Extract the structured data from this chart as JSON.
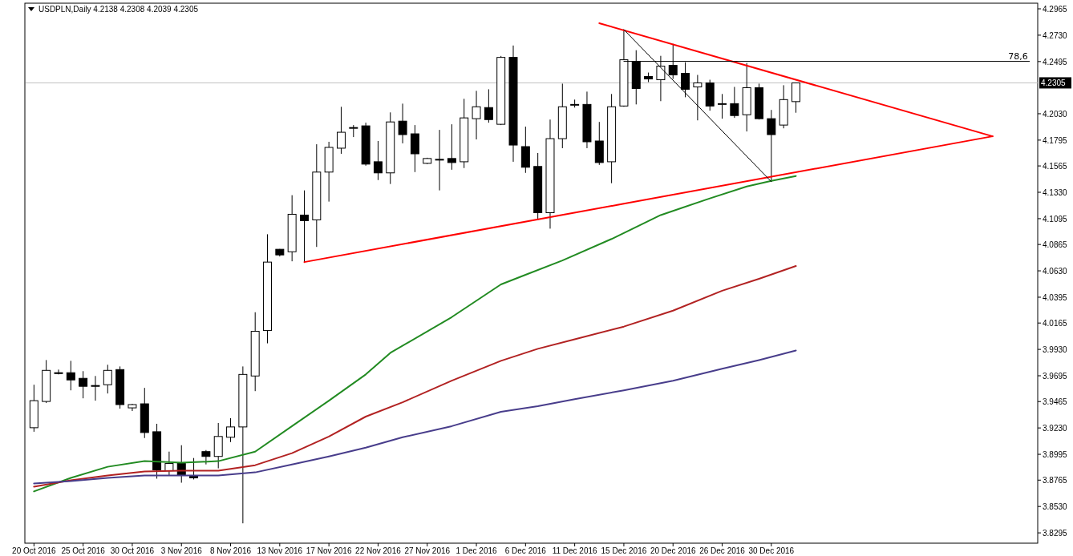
{
  "chart_data": {
    "type": "candlestick",
    "title": "USDPLN,Daily 4.2138 4.2308 4.2039 4.2305",
    "categories": [
      "20 Oct 2016",
      null,
      null,
      null,
      "25 Oct 2016",
      null,
      null,
      null,
      "30 Oct 2016",
      null,
      null,
      null,
      "3 Nov 2016",
      null,
      null,
      null,
      "8 Nov 2016",
      null,
      null,
      null,
      "13 Nov 2016",
      null,
      null,
      null,
      "17 Nov 2016",
      null,
      null,
      null,
      "22 Nov 2016",
      null,
      null,
      null,
      "27 Nov 2016",
      null,
      null,
      null,
      "1 Dec 2016",
      null,
      null,
      null,
      "6 Dec 2016",
      null,
      null,
      null,
      "11 Dec 2016",
      null,
      null,
      null,
      "15 Dec 2016",
      null,
      null,
      null,
      "20 Dec 2016",
      null,
      null,
      null,
      "26 Dec 2016",
      null,
      null,
      null,
      "30 Dec 2016",
      null,
      null,
      null,
      null,
      null,
      null,
      null,
      null,
      null,
      null,
      null,
      null,
      null,
      null,
      null,
      null,
      null,
      null,
      null,
      null,
      null
    ],
    "ohlc": [
      [
        3.9232,
        3.9615,
        3.9196,
        3.9473
      ],
      [
        3.9466,
        3.9835,
        3.9452,
        3.9743
      ],
      [
        3.9722,
        3.975,
        3.9707,
        3.9715
      ],
      [
        3.9722,
        3.9828,
        3.9565,
        3.9658
      ],
      [
        3.9672,
        3.9736,
        3.9494,
        3.9601
      ],
      [
        3.9608,
        3.9693,
        3.9473,
        3.9605
      ],
      [
        3.9615,
        3.9793,
        3.9537,
        3.9743
      ],
      [
        3.975,
        3.9778,
        3.9402,
        3.9438
      ],
      [
        3.9409,
        3.9445,
        3.9381,
        3.9438
      ],
      [
        3.9445,
        3.9587,
        3.914,
        3.9189
      ],
      [
        3.9196,
        3.9267,
        3.8778,
        3.8856
      ],
      [
        3.8849,
        3.9019,
        3.8806,
        3.8913
      ],
      [
        3.8913,
        3.9076,
        3.8742,
        3.8813
      ],
      [
        3.8799,
        3.8962,
        3.8771,
        3.8785
      ],
      [
        3.9019,
        3.9033,
        3.8905,
        3.8976
      ],
      [
        3.8976,
        3.9274,
        3.887,
        3.9154
      ],
      [
        3.9147,
        3.9317,
        3.9104,
        3.9239
      ],
      [
        3.9239,
        3.9778,
        3.838,
        3.9707
      ],
      [
        3.9693,
        4.0261,
        3.9558,
        4.0091
      ],
      [
        4.0098,
        4.0956,
        3.9984,
        4.0708
      ],
      [
        4.0822,
        4.0825,
        4.0758,
        4.0772
      ],
      [
        4.08,
        4.1304,
        4.0715,
        4.1134
      ],
      [
        4.1127,
        4.1347,
        4.0701,
        4.1077
      ],
      [
        4.1084,
        4.1758,
        4.0843,
        4.151
      ],
      [
        4.151,
        4.178,
        4.1247,
        4.173
      ],
      [
        4.1723,
        4.2092,
        4.1673,
        4.1865
      ],
      [
        4.1907,
        4.1929,
        4.1822,
        4.1907
      ],
      [
        4.1922,
        4.195,
        4.1567,
        4.1581
      ],
      [
        4.1602,
        4.1787,
        4.1439,
        4.1503
      ],
      [
        4.1503,
        4.2042,
        4.1404,
        4.1957
      ],
      [
        4.1964,
        4.212,
        4.1766,
        4.1844
      ],
      [
        4.1851,
        4.1929,
        4.151,
        4.1673
      ],
      [
        4.1588,
        4.1638,
        4.1581,
        4.1631
      ],
      [
        4.1624,
        4.1886,
        4.1347,
        4.1624
      ],
      [
        4.1631,
        4.1936,
        4.1531,
        4.1595
      ],
      [
        4.1602,
        4.2163,
        4.1546,
        4.1993
      ],
      [
        4.1986,
        4.2234,
        4.1801,
        4.2092
      ],
      [
        4.2085,
        4.2248,
        4.195,
        4.1978
      ],
      [
        4.1936,
        4.2545,
        4.1929,
        4.2532
      ],
      [
        4.2532,
        4.2638,
        4.1602,
        4.1751
      ],
      [
        4.1737,
        4.1915,
        4.1503,
        4.1553
      ],
      [
        4.156,
        4.168,
        4.1084,
        4.1148
      ],
      [
        4.1148,
        4.1978,
        4.1006,
        4.1808
      ],
      [
        4.1808,
        4.2298,
        4.1723,
        4.2092
      ],
      [
        4.2113,
        4.2156,
        4.2085,
        4.2113
      ],
      [
        4.2113,
        4.2227,
        4.1723,
        4.178
      ],
      [
        4.1787,
        4.1957,
        4.1574,
        4.1595
      ],
      [
        4.1602,
        4.2206,
        4.1411,
        4.2092
      ],
      [
        4.2099,
        4.278,
        4.2092,
        4.2511
      ],
      [
        4.2497,
        4.2596,
        4.2113,
        4.2255
      ],
      [
        4.2362,
        4.2397,
        4.2312,
        4.234
      ],
      [
        4.2333,
        4.2546,
        4.2142,
        4.2454
      ],
      [
        4.2461,
        4.2653,
        4.234,
        4.2376
      ],
      [
        4.239,
        4.2489,
        4.2177,
        4.2248
      ],
      [
        4.2269,
        4.2376,
        4.1971,
        4.2305
      ],
      [
        4.2305,
        4.2333,
        4.2057,
        4.2099
      ],
      [
        4.212,
        4.2206,
        4.1986,
        4.212
      ],
      [
        4.212,
        4.2269,
        4.1993,
        4.2014
      ],
      [
        4.2021,
        4.2482,
        4.1872,
        4.2262
      ],
      [
        4.2262,
        4.2298,
        4.1978,
        4.1986
      ],
      [
        4.1986,
        4.2064,
        4.1425,
        4.1844
      ],
      [
        4.1929,
        4.2284,
        4.19,
        4.2156
      ],
      [
        4.2138,
        4.2308,
        4.2039,
        4.2305
      ],
      null,
      null,
      null,
      null,
      null,
      null,
      null,
      null,
      null,
      null,
      null,
      null,
      null,
      null,
      null,
      null,
      null,
      null,
      null
    ],
    "series": [
      {
        "type": "line",
        "color": "#228b22",
        "values": [
          3.8664,
          null,
          null,
          3.8785,
          null,
          null,
          3.8884,
          null,
          null,
          3.8934,
          null,
          null,
          3.892,
          null,
          null,
          3.8934,
          null,
          null,
          3.9019,
          null,
          null,
          3.9246,
          null,
          null,
          3.9473,
          null,
          null,
          3.9707,
          null,
          3.9899,
          null,
          null,
          null,
          null,
          4.0218,
          null,
          null,
          null,
          4.0509,
          null,
          4.0595,
          null,
          null,
          4.0722,
          null,
          null,
          null,
          4.0914,
          null,
          null,
          null,
          4.1127,
          null,
          null,
          null,
          4.1276,
          null,
          null,
          4.1382,
          null,
          4.1432,
          null,
          4.1475,
          null,
          null,
          null,
          null,
          null,
          null,
          null,
          null,
          null,
          null,
          null,
          null,
          null,
          null,
          null,
          null,
          null,
          null,
          null
        ]
      },
      {
        "type": "line",
        "color": "#b22222",
        "values": [
          3.8707,
          null,
          null,
          3.8764,
          null,
          null,
          3.8806,
          null,
          null,
          3.8842,
          null,
          null,
          3.8849,
          null,
          null,
          3.8849,
          null,
          null,
          3.8898,
          null,
          null,
          3.9005,
          null,
          null,
          3.9154,
          null,
          null,
          3.9331,
          null,
          null,
          3.9459,
          null,
          null,
          null,
          3.9651,
          null,
          null,
          null,
          3.9828,
          null,
          null,
          3.9935,
          null,
          null,
          4.002,
          null,
          null,
          null,
          4.0133,
          null,
          null,
          null,
          4.0275,
          null,
          null,
          null,
          4.0453,
          null,
          null,
          4.0559,
          null,
          null,
          4.0673,
          null,
          null,
          null,
          null,
          null,
          null,
          null,
          null,
          null,
          null,
          null,
          null,
          null,
          null,
          null,
          null,
          null,
          null,
          null
        ]
      },
      {
        "type": "line",
        "color": "#483d8b",
        "values": [
          3.8735,
          null,
          null,
          3.8756,
          null,
          null,
          3.8785,
          null,
          null,
          3.8806,
          null,
          null,
          3.8806,
          null,
          null,
          3.8806,
          null,
          null,
          3.8834,
          null,
          null,
          3.8905,
          null,
          null,
          3.8976,
          null,
          null,
          3.9054,
          null,
          null,
          3.9147,
          null,
          null,
          null,
          3.9246,
          null,
          null,
          null,
          3.9374,
          null,
          null,
          3.9424,
          null,
          null,
          3.9487,
          null,
          null,
          null,
          3.9565,
          null,
          null,
          null,
          3.9651,
          null,
          null,
          null,
          3.9757,
          null,
          null,
          3.9835,
          null,
          null,
          3.992,
          null,
          null,
          null,
          null,
          null,
          null,
          null,
          null,
          null,
          null,
          null,
          null,
          null,
          null,
          null,
          null,
          null,
          null,
          null
        ]
      },
      {
        "type": "line",
        "color": "#ff0000",
        "values": [
          null,
          null,
          null,
          null,
          null,
          null,
          null,
          null,
          null,
          null,
          null,
          null,
          null,
          null,
          null,
          null,
          null,
          null,
          null,
          null,
          null,
          null,
          4.0708,
          null,
          null,
          null,
          null,
          null,
          null,
          null,
          null,
          null,
          null,
          null,
          null,
          null,
          null,
          null,
          null,
          null,
          null,
          null,
          null,
          null,
          null,
          null,
          null,
          null,
          null,
          null,
          null,
          null,
          null,
          null,
          null,
          null,
          null,
          null,
          null,
          null,
          null,
          null,
          null,
          null,
          null,
          null,
          null,
          null,
          null,
          null,
          null,
          null,
          null,
          null,
          null,
          null,
          null,
          null,
          4.1829,
          null,
          null,
          null
        ]
      },
      {
        "type": "line",
        "color": "#ff0000",
        "values": [
          null,
          null,
          null,
          null,
          null,
          null,
          null,
          null,
          null,
          null,
          null,
          null,
          null,
          null,
          null,
          null,
          null,
          null,
          null,
          null,
          null,
          null,
          null,
          null,
          null,
          null,
          null,
          null,
          null,
          null,
          null,
          null,
          null,
          null,
          null,
          null,
          null,
          null,
          null,
          null,
          null,
          null,
          null,
          null,
          null,
          null,
          4.2837,
          null,
          null,
          null,
          null,
          null,
          null,
          null,
          null,
          null,
          null,
          null,
          null,
          null,
          null,
          null,
          null,
          null,
          null,
          null,
          null,
          null,
          null,
          null,
          null,
          null,
          null,
          null,
          null,
          null,
          null,
          null,
          4.1829,
          null,
          null,
          null
        ]
      },
      {
        "type": "line",
        "color": "#000000",
        "values": [
          null,
          null,
          null,
          null,
          null,
          null,
          null,
          null,
          null,
          null,
          null,
          null,
          null,
          null,
          null,
          null,
          null,
          null,
          null,
          null,
          null,
          null,
          null,
          null,
          null,
          null,
          null,
          null,
          null,
          null,
          null,
          null,
          null,
          null,
          null,
          null,
          null,
          null,
          null,
          null,
          null,
          null,
          null,
          null,
          null,
          null,
          null,
          null,
          4.278,
          null,
          null,
          null,
          null,
          null,
          null,
          null,
          null,
          null,
          null,
          null,
          4.1425,
          null,
          null,
          null,
          null,
          null,
          null,
          null,
          null,
          null,
          null,
          null,
          null,
          null,
          null,
          null,
          null,
          null,
          null,
          null,
          null,
          null
        ]
      },
      {
        "type": "line",
        "name": "78,6",
        "color": "#000000",
        "values": [
          null,
          null,
          null,
          null,
          null,
          null,
          null,
          null,
          null,
          null,
          null,
          null,
          null,
          null,
          null,
          null,
          null,
          null,
          null,
          null,
          null,
          null,
          null,
          null,
          null,
          null,
          null,
          null,
          null,
          null,
          null,
          null,
          null,
          null,
          null,
          null,
          null,
          null,
          null,
          null,
          null,
          null,
          null,
          null,
          null,
          null,
          null,
          null,
          4.2497,
          null,
          null,
          null,
          null,
          null,
          null,
          null,
          null,
          null,
          null,
          null,
          null,
          null,
          null,
          null,
          null,
          null,
          null,
          null,
          null,
          null,
          null,
          null,
          null,
          null,
          null,
          null,
          null,
          null,
          null,
          null,
          null,
          4.2497
        ]
      }
    ],
    "ref_lines": [
      {
        "axis": "y",
        "value": 4.2305,
        "label": "4.2305",
        "color": "#c0c0c0"
      }
    ],
    "ylim": [
      3.8203,
      4.3015
    ],
    "yticks": [
      4.2965,
      {
        "value": 4.273,
        "label": "4.2730"
      },
      4.2495,
      {
        "value": 4.203,
        "label": "4.2030"
      },
      4.1795,
      4.1565,
      {
        "value": 4.133,
        "label": "4.1330"
      },
      4.1095,
      4.0865,
      {
        "value": 4.063,
        "label": "4.0630"
      },
      4.0395,
      4.0165,
      {
        "value": 3.993,
        "label": "3.9930"
      },
      3.9695,
      3.9465,
      {
        "value": 3.923,
        "label": "3.9230"
      },
      3.8995,
      3.8765,
      {
        "value": 3.853,
        "label": "3.8530"
      },
      3.8295
    ]
  }
}
